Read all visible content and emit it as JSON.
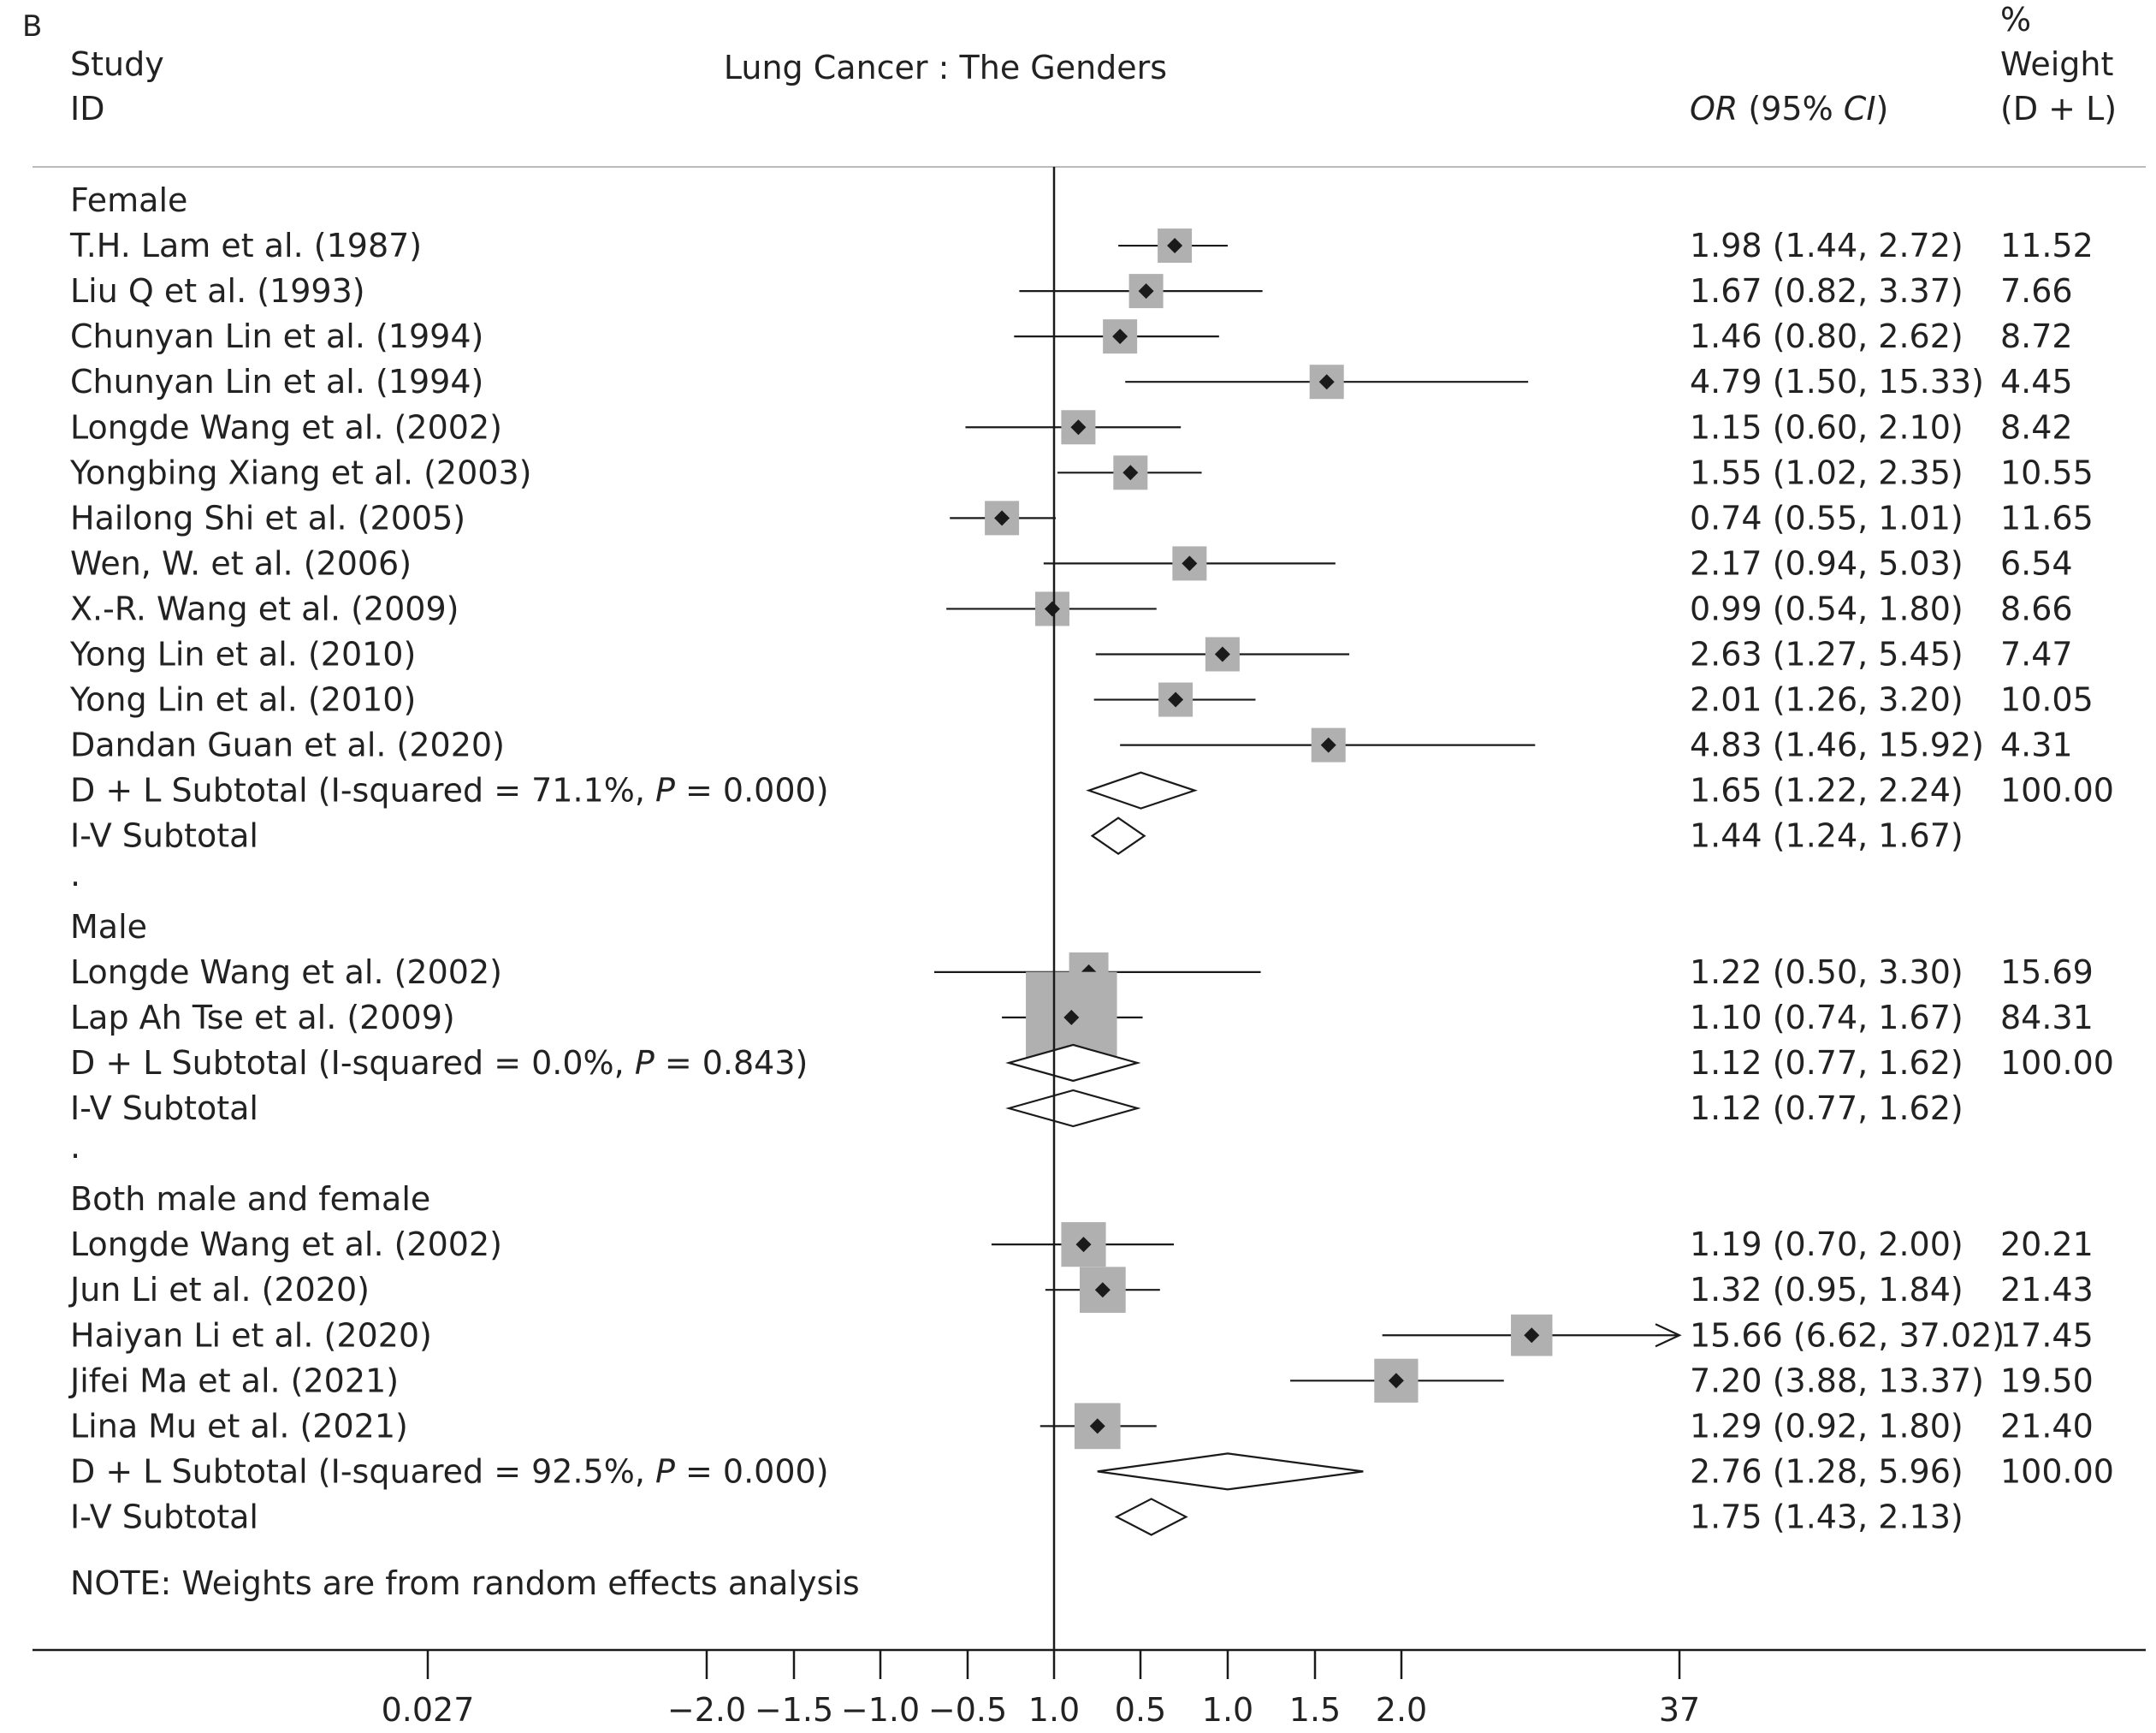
{
  "panel_label": "B",
  "title": "Lung Cancer : The Genders",
  "headers": {
    "study_line1": "Study",
    "study_line2": "ID",
    "or_label": "OR",
    "or_ci_prefix": " (95% ",
    "or_ci_italic": "CI",
    "or_ci_suffix": ")",
    "weight_line1": "%",
    "weight_line2": "Weight",
    "weight_line3": "(D + L)"
  },
  "note": "NOTE: Weights are from random effects analysis",
  "separator_dot": ".",
  "colors": {
    "box": "#b0b0b0",
    "point": "#1a1a1a",
    "line": "#1a1a1a",
    "text": "#222222",
    "rule": "#bbbbbb"
  },
  "chart_data": {
    "type": "forest",
    "axis_ticks": [
      "0.027",
      "−2.0",
      "−1.5",
      "−1.0",
      "−0.5",
      "1.0",
      "0.5",
      "1.0",
      "1.5",
      "2.0",
      "37"
    ],
    "axis_range_log_or": [
      -2.1,
      1.85
    ],
    "null_line": 1.0,
    "groups": [
      {
        "name": "Female",
        "studies": [
          {
            "label": "T.H. Lam et al. (1987)",
            "or": 1.98,
            "lo": 1.44,
            "hi": 2.72,
            "text": "1.98 (1.44, 2.72)",
            "weight": "11.52",
            "pos": 0.695,
            "lpos": 0.37,
            "hpos": 1.0
          },
          {
            "label": "Liu Q et al. (1993)",
            "or": 1.67,
            "lo": 0.82,
            "hi": 3.37,
            "text": "1.67 (0.82, 3.37)",
            "weight": "7.66",
            "pos": 0.53,
            "lpos": -0.2,
            "hpos": 1.2
          },
          {
            "label": "Chunyan Lin et al. (1994)",
            "or": 1.46,
            "lo": 0.8,
            "hi": 2.62,
            "text": "1.46 (0.80, 2.62)",
            "weight": "8.72",
            "pos": 0.38,
            "lpos": -0.23,
            "hpos": 0.95
          },
          {
            "label": "Chunyan Lin et al. (1994)",
            "or": 4.79,
            "lo": 1.5,
            "hi": 15.33,
            "text": "4.79 (1.50, 15.33)",
            "weight": "4.45",
            "pos": 1.57,
            "lpos": 0.41,
            "hpos": 2.73
          },
          {
            "label": "Longde Wang et al. (2002)",
            "or": 1.15,
            "lo": 0.6,
            "hi": 2.1,
            "text": "1.15 (0.60, 2.10)",
            "weight": "8.42",
            "pos": 0.14,
            "lpos": -0.51,
            "hpos": 0.73
          },
          {
            "label": "Yongbing Xiang et al. (2003)",
            "or": 1.55,
            "lo": 1.02,
            "hi": 2.35,
            "text": "1.55 (1.02, 2.35)",
            "weight": "10.55",
            "pos": 0.44,
            "lpos": 0.02,
            "hpos": 0.85
          },
          {
            "label": "Hailong Shi et al. (2005)",
            "or": 0.74,
            "lo": 0.55,
            "hi": 1.01,
            "text": "0.74 (0.55, 1.01)",
            "weight": "11.65",
            "pos": -0.3,
            "lpos": -0.6,
            "hpos": 0.01
          },
          {
            "label": "Wen, W. et al. (2006)",
            "or": 2.17,
            "lo": 0.94,
            "hi": 5.03,
            "text": "2.17 (0.94, 5.03)",
            "weight": "6.54",
            "pos": 0.78,
            "lpos": -0.06,
            "hpos": 1.62
          },
          {
            "label": "X.-R. Wang et al. (2009)",
            "or": 0.99,
            "lo": 0.54,
            "hi": 1.8,
            "text": "0.99 (0.54, 1.80)",
            "weight": "8.66",
            "pos": -0.01,
            "lpos": -0.62,
            "hpos": 0.59
          },
          {
            "label": "Yong Lin et al. (2010)",
            "or": 2.63,
            "lo": 1.27,
            "hi": 5.45,
            "text": "2.63 (1.27, 5.45)",
            "weight": "7.47",
            "pos": 0.97,
            "lpos": 0.24,
            "hpos": 1.7
          },
          {
            "label": "Yong Lin et al. (2010)",
            "or": 2.01,
            "lo": 1.26,
            "hi": 3.2,
            "text": "2.01 (1.26, 3.20)",
            "weight": "10.05",
            "pos": 0.7,
            "lpos": 0.23,
            "hpos": 1.16
          },
          {
            "label": "Dandan Guan et al. (2020)",
            "or": 4.83,
            "lo": 1.46,
            "hi": 15.92,
            "text": "4.83 (1.46, 15.92)",
            "weight": "4.31",
            "pos": 1.58,
            "lpos": 0.38,
            "hpos": 2.77
          }
        ],
        "subtotals": [
          {
            "label_pre": "D + L Subtotal  (I-squared = 71.1%, ",
            "label_p": "P",
            "label_post": " = 0.000)",
            "text": "1.65 (1.22, 2.24)",
            "weight": "100.00",
            "pos": 0.5,
            "lpos": 0.2,
            "hpos": 0.81
          },
          {
            "label_pre": "I-V Subtotal",
            "label_p": "",
            "label_post": "",
            "text": "1.44 (1.24, 1.67)",
            "weight": "",
            "pos": 0.37,
            "lpos": 0.22,
            "hpos": 0.52
          }
        ]
      },
      {
        "name": "Male",
        "studies": [
          {
            "label": "Longde Wang et al. (2002)",
            "or": 1.22,
            "lo": 0.5,
            "hi": 3.3,
            "text": "1.22 (0.50, 3.30)",
            "weight": "15.69",
            "pos": 0.2,
            "lpos": -0.69,
            "hpos": 1.19
          },
          {
            "label": "Lap Ah Tse et al. (2009)",
            "or": 1.1,
            "lo": 0.74,
            "hi": 1.67,
            "text": "1.10 (0.74, 1.67)",
            "weight": "84.31",
            "pos": 0.1,
            "lpos": -0.3,
            "hpos": 0.51
          }
        ],
        "subtotals": [
          {
            "label_pre": "D + L Subtotal  (I-squared = 0.0%, ",
            "label_p": "P",
            "label_post": " = 0.843)",
            "text": "1.12 (0.77, 1.62)",
            "weight": "100.00",
            "pos": 0.11,
            "lpos": -0.26,
            "hpos": 0.48
          },
          {
            "label_pre": "I-V Subtotal",
            "label_p": "",
            "label_post": "",
            "text": "1.12 (0.77, 1.62)",
            "weight": "",
            "pos": 0.11,
            "lpos": -0.26,
            "hpos": 0.48
          }
        ]
      },
      {
        "name": "Both male and female",
        "studies": [
          {
            "label": "Longde Wang et al. (2002)",
            "or": 1.19,
            "lo": 0.7,
            "hi": 2.0,
            "text": "1.19 (0.70, 2.00)",
            "weight": "20.21",
            "pos": 0.17,
            "lpos": -0.36,
            "hpos": 0.69
          },
          {
            "label": "Jun Li et al. (2020)",
            "or": 1.32,
            "lo": 0.95,
            "hi": 1.84,
            "text": "1.32 (0.95, 1.84)",
            "weight": "21.43",
            "pos": 0.28,
            "lpos": -0.05,
            "hpos": 0.61
          },
          {
            "label": "Haiyan Li et al. (2020)",
            "or": 15.66,
            "lo": 6.62,
            "hi": 37.02,
            "text": "15.66 (6.62, 37.02)",
            "weight": "17.45",
            "pos": 2.75,
            "lpos": 1.89,
            "hpos": 3.62,
            "arrow": true
          },
          {
            "label": "Jifei Ma et al. (2021)",
            "or": 7.2,
            "lo": 3.88,
            "hi": 13.37,
            "text": "7.20 (3.88, 13.37)",
            "weight": "19.50",
            "pos": 1.97,
            "lpos": 1.36,
            "hpos": 2.59
          },
          {
            "label": "Lina Mu et al. (2021)",
            "or": 1.29,
            "lo": 0.92,
            "hi": 1.8,
            "text": "1.29 (0.92, 1.80)",
            "weight": "21.40",
            "pos": 0.25,
            "lpos": -0.08,
            "hpos": 0.59
          }
        ],
        "subtotals": [
          {
            "label_pre": "D + L Subtotal  (I-squared = 92.5%, ",
            "label_p": "P",
            "label_post": " = 0.000)",
            "text": "2.76 (1.28, 5.96)",
            "weight": "100.00",
            "pos": 1.0,
            "lpos": 0.25,
            "hpos": 1.78
          },
          {
            "label_pre": "I-V Subtotal",
            "label_p": "",
            "label_post": "",
            "text": "1.75 (1.43, 2.13)",
            "weight": "",
            "pos": 0.56,
            "lpos": 0.36,
            "hpos": 0.76
          }
        ]
      }
    ]
  }
}
